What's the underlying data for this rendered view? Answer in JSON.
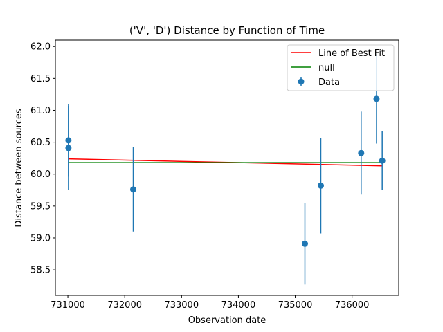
{
  "chart_data": {
    "type": "scatter",
    "title": "('V', 'D') Distance by Function of Time",
    "xlabel": "Observation date",
    "ylabel": "Distance between sources",
    "xlim": [
      730780,
      736820
    ],
    "ylim": [
      58.1,
      62.1
    ],
    "x_ticks": [
      731000,
      732000,
      733000,
      734000,
      735000,
      736000
    ],
    "x_tick_labels": [
      "731000",
      "732000",
      "733000",
      "734000",
      "735000",
      "736000"
    ],
    "y_ticks": [
      58.5,
      59.0,
      59.5,
      60.0,
      60.5,
      61.0,
      61.5,
      62.0
    ],
    "y_tick_labels": [
      "58.5",
      "59.0",
      "59.5",
      "60.0",
      "60.5",
      "61.0",
      "61.5",
      "62.0"
    ],
    "grid": false,
    "legend_position": "top-right",
    "series": [
      {
        "name": "Line of Best Fit",
        "kind": "line",
        "color": "#ff0000",
        "x": [
          731000,
          736530
        ],
        "y": [
          60.24,
          60.13
        ]
      },
      {
        "name": "null",
        "kind": "line",
        "color": "#008000",
        "x": [
          731000,
          736530
        ],
        "y": [
          60.18,
          60.18
        ]
      },
      {
        "name": "Data",
        "kind": "errorbar",
        "color": "#1f77b4",
        "x": [
          731010,
          731010,
          732150,
          735170,
          735450,
          736160,
          736430,
          736530
        ],
        "y": [
          60.53,
          60.41,
          59.76,
          58.91,
          59.82,
          60.33,
          61.18,
          60.21
        ],
        "yerr": [
          0.57,
          0.66,
          0.66,
          0.64,
          0.75,
          0.65,
          0.7,
          0.46
        ]
      }
    ]
  }
}
